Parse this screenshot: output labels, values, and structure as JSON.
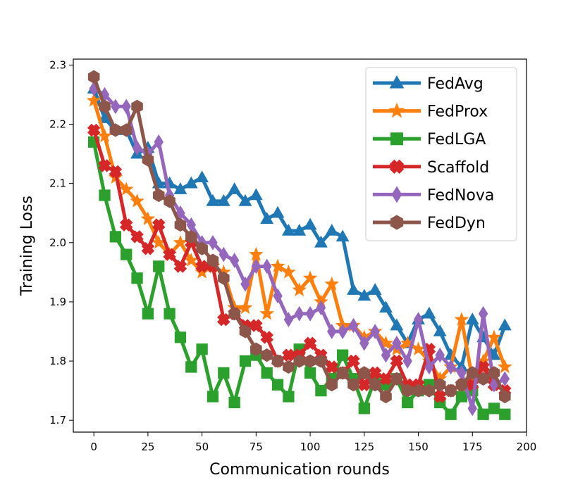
{
  "chart_data": {
    "type": "line",
    "title": "",
    "xlabel": "Communication rounds",
    "ylabel": "Training Loss",
    "xlim": [
      -9.5,
      200
    ],
    "ylim": [
      1.68,
      2.31
    ],
    "xticks": [
      0,
      25,
      50,
      75,
      100,
      125,
      150,
      175,
      200
    ],
    "yticks": [
      1.7,
      1.8,
      1.9,
      2.0,
      2.1,
      2.2,
      2.3
    ],
    "ytick_labels": [
      "1.7",
      "1.8",
      "1.9",
      "2.0",
      "2.1",
      "2.2",
      "2.3"
    ],
    "grid": false,
    "legend_position": "top-right",
    "x": [
      0,
      5,
      10,
      15,
      20,
      25,
      30,
      35,
      40,
      45,
      50,
      55,
      60,
      65,
      70,
      75,
      80,
      85,
      90,
      95,
      100,
      105,
      110,
      115,
      120,
      125,
      130,
      135,
      140,
      145,
      150,
      155,
      160,
      165,
      170,
      175,
      180,
      185,
      190
    ],
    "series": [
      {
        "name": "FedAvg",
        "color": "#1f77b4",
        "marker": "triangle",
        "values": [
          2.26,
          2.21,
          2.19,
          2.19,
          2.15,
          2.16,
          2.1,
          2.1,
          2.09,
          2.1,
          2.11,
          2.07,
          2.07,
          2.09,
          2.07,
          2.08,
          2.04,
          2.05,
          2.02,
          2.02,
          2.03,
          2.0,
          2.02,
          2.01,
          1.92,
          1.91,
          1.92,
          1.89,
          1.86,
          1.83,
          1.87,
          1.88,
          1.85,
          1.81,
          1.79,
          1.87,
          1.84,
          1.81,
          1.86
        ]
      },
      {
        "name": "FedProx",
        "color": "#ff7f0e",
        "marker": "star",
        "values": [
          2.24,
          2.18,
          2.11,
          2.09,
          2.07,
          2.04,
          2.0,
          1.98,
          2.0,
          1.97,
          1.95,
          1.96,
          1.95,
          1.89,
          1.89,
          1.98,
          1.88,
          1.96,
          1.95,
          1.92,
          1.94,
          1.9,
          1.93,
          1.86,
          1.86,
          1.84,
          1.85,
          1.83,
          1.82,
          1.83,
          1.82,
          1.8,
          1.77,
          1.79,
          1.87,
          1.77,
          1.8,
          1.84,
          1.79
        ]
      },
      {
        "name": "FedLGA",
        "color": "#2ca02c",
        "marker": "square",
        "values": [
          2.17,
          2.08,
          2.01,
          1.98,
          1.94,
          1.88,
          1.96,
          1.88,
          1.84,
          1.79,
          1.82,
          1.74,
          1.78,
          1.73,
          1.8,
          1.81,
          1.78,
          1.76,
          1.74,
          1.82,
          1.78,
          1.75,
          1.77,
          1.81,
          1.77,
          1.72,
          1.77,
          1.76,
          1.77,
          1.73,
          1.75,
          1.76,
          1.73,
          1.71,
          1.74,
          1.75,
          1.71,
          1.72,
          1.71
        ]
      },
      {
        "name": "Scaffold",
        "color": "#d62728",
        "marker": "x",
        "values": [
          2.19,
          2.13,
          2.12,
          2.03,
          2.01,
          1.99,
          2.03,
          1.98,
          1.96,
          2.0,
          1.96,
          1.96,
          1.87,
          1.88,
          1.86,
          1.86,
          1.84,
          1.8,
          1.81,
          1.81,
          1.83,
          1.81,
          1.79,
          1.78,
          1.8,
          1.76,
          1.78,
          1.77,
          1.8,
          1.76,
          1.76,
          1.82,
          1.74,
          1.75,
          1.76,
          1.76,
          1.79,
          1.76,
          1.75
        ]
      },
      {
        "name": "FedNova",
        "color": "#9467bd",
        "marker": "diamond",
        "values": [
          2.26,
          2.25,
          2.23,
          2.23,
          2.16,
          2.15,
          2.17,
          2.08,
          2.05,
          2.03,
          2.0,
          2.0,
          1.98,
          1.97,
          1.93,
          1.96,
          1.96,
          1.91,
          1.87,
          1.88,
          1.88,
          1.89,
          1.85,
          1.85,
          1.86,
          1.83,
          1.85,
          1.81,
          1.83,
          1.8,
          1.87,
          1.79,
          1.81,
          1.79,
          1.78,
          1.72,
          1.88,
          1.76,
          1.77
        ]
      },
      {
        "name": "FedDyn",
        "color": "#8c564b",
        "marker": "hexagon",
        "values": [
          2.28,
          2.23,
          2.19,
          2.19,
          2.23,
          2.14,
          2.08,
          2.07,
          2.03,
          2.01,
          1.99,
          1.97,
          1.94,
          1.88,
          1.85,
          1.82,
          1.81,
          1.8,
          1.79,
          1.8,
          1.8,
          1.8,
          1.76,
          1.78,
          1.76,
          1.78,
          1.76,
          1.74,
          1.77,
          1.75,
          1.75,
          1.75,
          1.76,
          1.75,
          1.76,
          1.78,
          1.77,
          1.78,
          1.74
        ]
      }
    ]
  }
}
